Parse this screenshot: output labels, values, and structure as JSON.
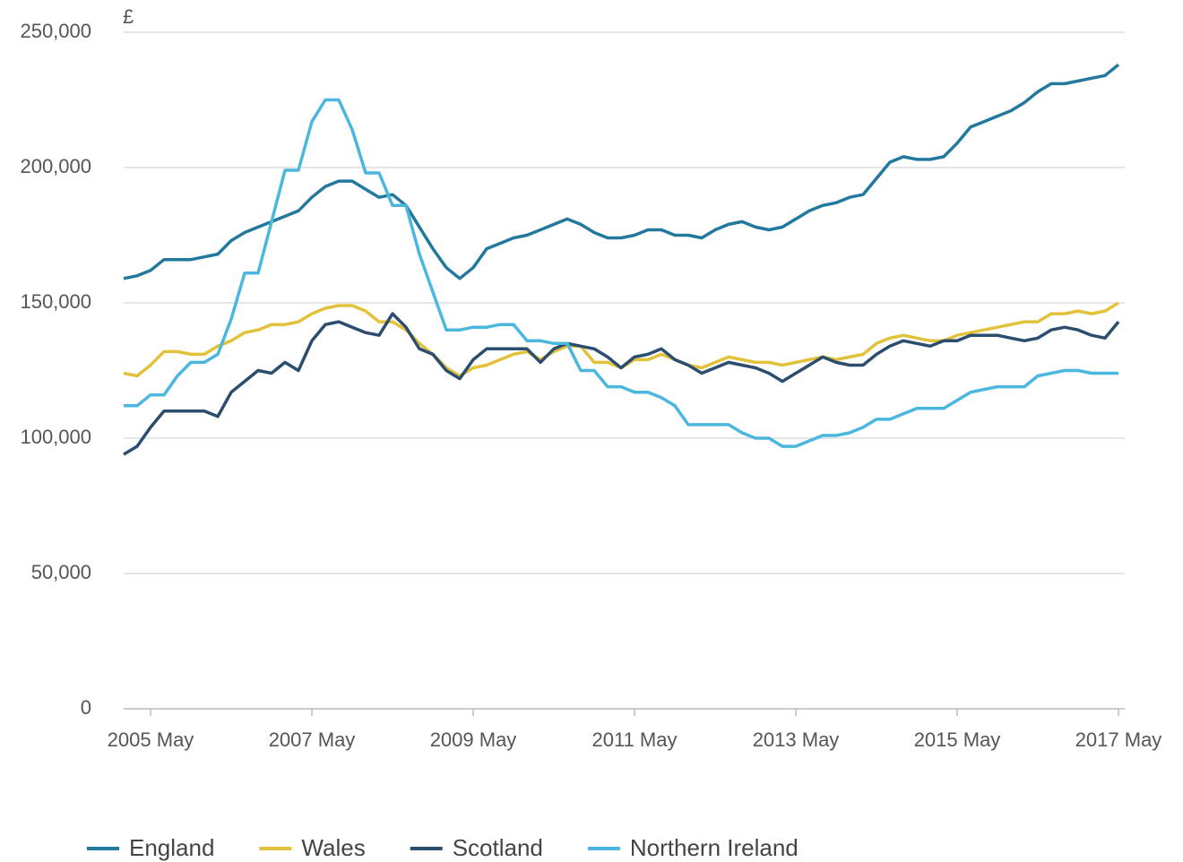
{
  "chart_data": {
    "type": "line",
    "y_label": "£",
    "categories": [
      null,
      null,
      "2005 May",
      null,
      null,
      null,
      null,
      null,
      null,
      null,
      null,
      null,
      null,
      null,
      "2007 May",
      null,
      null,
      null,
      null,
      null,
      null,
      null,
      null,
      null,
      null,
      null,
      "2009 May",
      null,
      null,
      null,
      null,
      null,
      null,
      null,
      null,
      null,
      null,
      null,
      "2011 May",
      null,
      null,
      null,
      null,
      null,
      null,
      null,
      null,
      null,
      null,
      null,
      "2013 May",
      null,
      null,
      null,
      null,
      null,
      null,
      null,
      null,
      null,
      null,
      null,
      "2015 May",
      null,
      null,
      null,
      null,
      null,
      null,
      null,
      null,
      null,
      null,
      null,
      "2017 May"
    ],
    "series": [
      {
        "name": "England",
        "color": "#22799d",
        "values": [
          159000,
          160000,
          162000,
          166000,
          166000,
          166000,
          167000,
          168000,
          173000,
          176000,
          178000,
          180000,
          182000,
          184000,
          189000,
          193000,
          195000,
          195000,
          192000,
          189000,
          190000,
          186000,
          178000,
          170000,
          163000,
          159000,
          163000,
          170000,
          172000,
          174000,
          175000,
          177000,
          179000,
          181000,
          179000,
          176000,
          174000,
          174000,
          175000,
          177000,
          177000,
          175000,
          175000,
          174000,
          177000,
          179000,
          180000,
          178000,
          177000,
          178000,
          181000,
          184000,
          186000,
          187000,
          189000,
          190000,
          196000,
          202000,
          204000,
          203000,
          203000,
          204000,
          209000,
          215000,
          217000,
          219000,
          221000,
          224000,
          228000,
          231000,
          231000,
          232000,
          233000,
          234000,
          238000
        ]
      },
      {
        "name": "Wales",
        "color": "#e3c23b",
        "values": [
          124000,
          123000,
          127000,
          132000,
          132000,
          131000,
          131000,
          134000,
          136000,
          139000,
          140000,
          142000,
          142000,
          143000,
          146000,
          148000,
          149000,
          149000,
          147000,
          143000,
          143000,
          140000,
          135000,
          131000,
          126000,
          123000,
          126000,
          127000,
          129000,
          131000,
          132000,
          129000,
          132000,
          134000,
          134000,
          128000,
          128000,
          126000,
          129000,
          129000,
          131000,
          129000,
          127000,
          126000,
          128000,
          130000,
          129000,
          128000,
          128000,
          127000,
          128000,
          129000,
          130000,
          129000,
          130000,
          131000,
          135000,
          137000,
          138000,
          137000,
          136000,
          136000,
          138000,
          139000,
          140000,
          141000,
          142000,
          143000,
          143000,
          146000,
          146000,
          147000,
          146000,
          147000,
          150000
        ]
      },
      {
        "name": "Scotland",
        "color": "#2c4e6e",
        "values": [
          94000,
          97000,
          104000,
          110000,
          110000,
          110000,
          110000,
          108000,
          117000,
          121000,
          125000,
          124000,
          128000,
          125000,
          136000,
          142000,
          143000,
          141000,
          139000,
          138000,
          146000,
          141000,
          133000,
          131000,
          125000,
          122000,
          129000,
          133000,
          133000,
          133000,
          133000,
          128000,
          133000,
          135000,
          134000,
          133000,
          130000,
          126000,
          130000,
          131000,
          133000,
          129000,
          127000,
          124000,
          126000,
          128000,
          127000,
          126000,
          124000,
          121000,
          124000,
          127000,
          130000,
          128000,
          127000,
          127000,
          131000,
          134000,
          136000,
          135000,
          134000,
          136000,
          136000,
          138000,
          138000,
          138000,
          137000,
          136000,
          137000,
          140000,
          141000,
          140000,
          138000,
          137000,
          143000
        ]
      },
      {
        "name": "Northern Ireland",
        "color": "#4bb7df",
        "values": [
          112000,
          112000,
          116000,
          116000,
          123000,
          128000,
          128000,
          131000,
          144000,
          161000,
          161000,
          180000,
          199000,
          199000,
          217000,
          225000,
          225000,
          214000,
          198000,
          198000,
          186000,
          186000,
          168000,
          154000,
          140000,
          140000,
          141000,
          141000,
          142000,
          142000,
          136000,
          136000,
          135000,
          135000,
          125000,
          125000,
          119000,
          119000,
          117000,
          117000,
          115000,
          112000,
          105000,
          105000,
          105000,
          105000,
          102000,
          100000,
          100000,
          97000,
          97000,
          99000,
          101000,
          101000,
          102000,
          104000,
          107000,
          107000,
          109000,
          111000,
          111000,
          111000,
          114000,
          117000,
          118000,
          119000,
          119000,
          119000,
          123000,
          124000,
          125000,
          125000,
          124000,
          124000,
          124000
        ]
      }
    ],
    "ylim": [
      0,
      250000
    ],
    "yticks": [
      0,
      {
        "value": 50000,
        "label": "50,000"
      },
      {
        "value": 100000,
        "label": "100,000"
      },
      {
        "value": 150000,
        "label": "150,000"
      },
      {
        "value": 200000,
        "label": "200,000"
      },
      {
        "value": 250000,
        "label": "250,000"
      }
    ],
    "grid": true,
    "legend": "bottom"
  }
}
